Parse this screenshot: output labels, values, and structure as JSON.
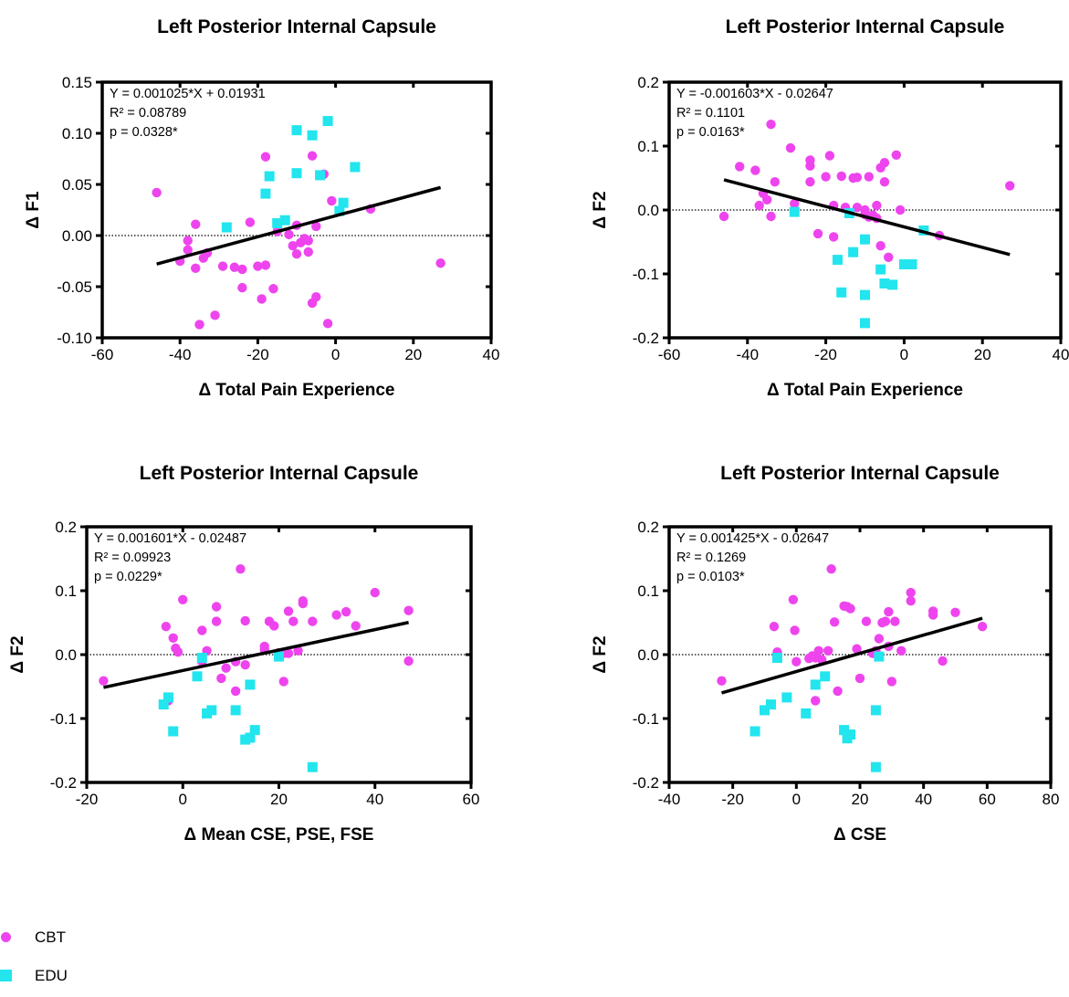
{
  "colors": {
    "CBT": "#ee44ee",
    "EDU": "#22e5ee"
  },
  "legend": [
    {
      "name": "CBT",
      "marker": "circle",
      "color": "#ee44ee"
    },
    {
      "name": "EDU",
      "marker": "square",
      "color": "#22e5ee"
    }
  ],
  "chart_data": [
    {
      "type": "scatter",
      "title": "Left Posterior Internal Capsule",
      "xlabel": "Δ Total Pain Experience",
      "ylabel": "Δ F1",
      "xlim": [
        -60,
        40
      ],
      "ylim": [
        -0.1,
        0.15
      ],
      "xticks": [
        "-60",
        "-40",
        "-20",
        "0",
        "20",
        "40"
      ],
      "yticks": [
        "-0.10",
        "-0.05",
        "0.00",
        "0.05",
        "0.10",
        "0.15"
      ],
      "annotation": [
        "Y = 0.001025*X + 0.01931",
        "R² = 0.08789",
        "p = 0.0328*"
      ],
      "fit": {
        "slope": 0.001025,
        "intercept": 0.01931,
        "x_range": [
          -46,
          27
        ]
      },
      "grid": false,
      "zero_line": true,
      "series": [
        {
          "name": "CBT",
          "points": [
            [
              -46,
              0.042
            ],
            [
              -40,
              -0.025
            ],
            [
              -38,
              -0.005
            ],
            [
              -38,
              -0.014
            ],
            [
              -36,
              0.011
            ],
            [
              -36,
              -0.032
            ],
            [
              -35,
              -0.087
            ],
            [
              -34,
              -0.022
            ],
            [
              -33,
              -0.017
            ],
            [
              -31,
              -0.078
            ],
            [
              -29,
              -0.03
            ],
            [
              -26,
              -0.031
            ],
            [
              -24,
              -0.033
            ],
            [
              -24,
              -0.051
            ],
            [
              -22,
              0.013
            ],
            [
              -20,
              -0.03
            ],
            [
              -19,
              -0.062
            ],
            [
              -18,
              0.077
            ],
            [
              -18,
              -0.029
            ],
            [
              -16,
              -0.052
            ],
            [
              -15,
              0.004
            ],
            [
              -12,
              0.001
            ],
            [
              -11,
              -0.01
            ],
            [
              -10,
              -0.018
            ],
            [
              -10,
              0.01
            ],
            [
              -9,
              -0.007
            ],
            [
              -8,
              -0.003
            ],
            [
              -7,
              -0.005
            ],
            [
              -7,
              -0.016
            ],
            [
              -6,
              0.078
            ],
            [
              -6,
              -0.066
            ],
            [
              -5,
              0.009
            ],
            [
              -5,
              -0.06
            ],
            [
              -3,
              0.06
            ],
            [
              -2,
              -0.086
            ],
            [
              -1,
              0.034
            ],
            [
              9,
              0.026
            ],
            [
              27,
              -0.027
            ]
          ]
        },
        {
          "name": "EDU",
          "points": [
            [
              -28,
              0.008
            ],
            [
              -18,
              0.041
            ],
            [
              -17,
              0.058
            ],
            [
              -15,
              0.012
            ],
            [
              -13,
              0.015
            ],
            [
              -10,
              0.103
            ],
            [
              -10,
              0.061
            ],
            [
              -6,
              0.098
            ],
            [
              -4,
              0.059
            ],
            [
              -2,
              0.112
            ],
            [
              1,
              0.024
            ],
            [
              2,
              0.032
            ],
            [
              5,
              0.067
            ]
          ]
        }
      ]
    },
    {
      "type": "scatter",
      "title": "Left Posterior Internal Capsule",
      "xlabel": "Δ Total Pain Experience",
      "ylabel": "Δ F2",
      "xlim": [
        -60,
        40
      ],
      "ylim": [
        -0.2,
        0.2
      ],
      "xticks": [
        "-60",
        "-40",
        "-20",
        "0",
        "20",
        "40"
      ],
      "yticks": [
        "-0.2",
        "-0.1",
        "0.0",
        "0.1",
        "0.2"
      ],
      "annotation": [
        "Y = -0.001603*X - 0.02647",
        "R² = 0.1101",
        "p = 0.0163*"
      ],
      "fit": {
        "slope": -0.001603,
        "intercept": -0.02647,
        "x_range": [
          -46,
          27
        ]
      },
      "grid": false,
      "zero_line": true,
      "series": [
        {
          "name": "CBT",
          "points": [
            [
              -46,
              -0.01
            ],
            [
              -42,
              0.068
            ],
            [
              -38,
              0.062
            ],
            [
              -37,
              0.007
            ],
            [
              -36,
              0.026
            ],
            [
              -35,
              0.016
            ],
            [
              -34,
              0.134
            ],
            [
              -34,
              -0.01
            ],
            [
              -33,
              0.044
            ],
            [
              -29,
              0.097
            ],
            [
              -28,
              0.01
            ],
            [
              -24,
              0.078
            ],
            [
              -24,
              0.069
            ],
            [
              -24,
              0.044
            ],
            [
              -22,
              -0.037
            ],
            [
              -20,
              0.052
            ],
            [
              -19,
              0.085
            ],
            [
              -18,
              0.007
            ],
            [
              -18,
              -0.042
            ],
            [
              -16,
              0.053
            ],
            [
              -15,
              0.004
            ],
            [
              -13,
              0.05
            ],
            [
              -12,
              0.051
            ],
            [
              -12,
              0.004
            ],
            [
              -10,
              0.0
            ],
            [
              -10,
              -0.007
            ],
            [
              -9,
              0.052
            ],
            [
              -9,
              -0.011
            ],
            [
              -8,
              -0.008
            ],
            [
              -7,
              0.007
            ],
            [
              -7,
              -0.013
            ],
            [
              -6,
              0.066
            ],
            [
              -6,
              -0.056
            ],
            [
              -5,
              0.074
            ],
            [
              -5,
              0.044
            ],
            [
              -4,
              -0.074
            ],
            [
              -2,
              0.086
            ],
            [
              -1,
              0.0
            ],
            [
              9,
              -0.04
            ],
            [
              27,
              0.038
            ]
          ]
        },
        {
          "name": "EDU",
          "points": [
            [
              -28,
              -0.003
            ],
            [
              -17,
              -0.078
            ],
            [
              -16,
              -0.129
            ],
            [
              -14,
              -0.005
            ],
            [
              -13,
              -0.066
            ],
            [
              -10,
              -0.133
            ],
            [
              -10,
              -0.177
            ],
            [
              -10,
              -0.046
            ],
            [
              -6,
              -0.093
            ],
            [
              -5,
              -0.115
            ],
            [
              -3,
              -0.117
            ],
            [
              0,
              -0.085
            ],
            [
              2,
              -0.085
            ],
            [
              5,
              -0.032
            ]
          ]
        }
      ]
    },
    {
      "type": "scatter",
      "title": "Left Posterior Internal Capsule",
      "xlabel": "Δ Mean CSE, PSE, FSE",
      "ylabel": "Δ F2",
      "xlim": [
        -20,
        60
      ],
      "ylim": [
        -0.2,
        0.2
      ],
      "xticks": [
        "-20",
        "0",
        "20",
        "40",
        "60"
      ],
      "yticks": [
        "-0.2",
        "-0.1",
        "0.0",
        "0.1",
        "0.2"
      ],
      "annotation": [
        "Y = 0.001601*X - 0.02487",
        "R² = 0.09923",
        "p = 0.0229*"
      ],
      "fit": {
        "slope": 0.001601,
        "intercept": -0.02487,
        "x_range": [
          -16.5,
          47
        ]
      },
      "grid": false,
      "zero_line": true,
      "series": [
        {
          "name": "CBT",
          "points": [
            [
              -16.5,
              -0.041
            ],
            [
              -3.5,
              0.044
            ],
            [
              -3,
              -0.072
            ],
            [
              -2,
              0.026
            ],
            [
              -1.5,
              0.01
            ],
            [
              -1,
              0.004
            ],
            [
              0,
              0.086
            ],
            [
              4,
              0.038
            ],
            [
              4,
              -0.011
            ],
            [
              5,
              0.006
            ],
            [
              7,
              0.075
            ],
            [
              7,
              0.052
            ],
            [
              8,
              -0.037
            ],
            [
              9,
              -0.021
            ],
            [
              11,
              -0.011
            ],
            [
              11,
              -0.057
            ],
            [
              12,
              0.134
            ],
            [
              13,
              0.053
            ],
            [
              13,
              -0.016
            ],
            [
              17,
              0.013
            ],
            [
              17,
              0.008
            ],
            [
              18,
              0.052
            ],
            [
              19,
              0.045
            ],
            [
              20,
              0.003
            ],
            [
              21,
              0.002
            ],
            [
              21,
              -0.042
            ],
            [
              22,
              0.002
            ],
            [
              22,
              0.068
            ],
            [
              23,
              0.052
            ],
            [
              24,
              0.006
            ],
            [
              25,
              0.084
            ],
            [
              25,
              0.08
            ],
            [
              27,
              0.052
            ],
            [
              32,
              0.062
            ],
            [
              34,
              0.067
            ],
            [
              36,
              0.045
            ],
            [
              40,
              0.097
            ],
            [
              47,
              0.069
            ],
            [
              47,
              -0.01
            ]
          ]
        },
        {
          "name": "EDU",
          "points": [
            [
              -4,
              -0.078
            ],
            [
              -3,
              -0.067
            ],
            [
              -2,
              -0.12
            ],
            [
              3,
              -0.034
            ],
            [
              4,
              -0.005
            ],
            [
              5,
              -0.092
            ],
            [
              6,
              -0.087
            ],
            [
              11,
              -0.087
            ],
            [
              13,
              -0.133
            ],
            [
              14,
              -0.13
            ],
            [
              14,
              -0.047
            ],
            [
              15,
              -0.118
            ],
            [
              20,
              -0.003
            ],
            [
              27,
              -0.176
            ]
          ]
        }
      ]
    },
    {
      "type": "scatter",
      "title": "Left Posterior Internal Capsule",
      "xlabel": "Δ CSE",
      "ylabel": "Δ F2",
      "xlim": [
        -40,
        80
      ],
      "ylim": [
        -0.2,
        0.2
      ],
      "xticks": [
        "-40",
        "-20",
        "0",
        "20",
        "40",
        "60",
        "80"
      ],
      "yticks": [
        "-0.2",
        "-0.1",
        "0.0",
        "0.1",
        "0.2"
      ],
      "annotation": [
        "Y = 0.001425*X - 0.02647",
        "R² = 0.1269",
        "p = 0.0103*"
      ],
      "fit": {
        "slope": 0.001425,
        "intercept": -0.02647,
        "x_range": [
          -23.5,
          58.5
        ]
      },
      "grid": false,
      "zero_line": true,
      "series": [
        {
          "name": "CBT",
          "points": [
            [
              -23.5,
              -0.041
            ],
            [
              -7,
              0.044
            ],
            [
              -6,
              0.004
            ],
            [
              -1,
              0.086
            ],
            [
              -0.5,
              0.038
            ],
            [
              0,
              -0.011
            ],
            [
              4,
              -0.006
            ],
            [
              5,
              -0.002
            ],
            [
              6,
              -0.072
            ],
            [
              6,
              -0.005
            ],
            [
              7,
              0.006
            ],
            [
              8,
              -0.008
            ],
            [
              10,
              0.006
            ],
            [
              11,
              0.134
            ],
            [
              12,
              0.051
            ],
            [
              13,
              -0.057
            ],
            [
              15,
              0.076
            ],
            [
              16,
              0.075
            ],
            [
              17,
              0.072
            ],
            [
              19,
              0.009
            ],
            [
              20,
              -0.037
            ],
            [
              22,
              0.052
            ],
            [
              24,
              0.002
            ],
            [
              25,
              0.006
            ],
            [
              26,
              0.025
            ],
            [
              27,
              0.05
            ],
            [
              28,
              0.052
            ],
            [
              29,
              0.067
            ],
            [
              29,
              0.013
            ],
            [
              30,
              -0.042
            ],
            [
              31,
              0.052
            ],
            [
              33,
              0.006
            ],
            [
              36,
              0.097
            ],
            [
              36,
              0.084
            ],
            [
              43,
              0.068
            ],
            [
              43,
              0.062
            ],
            [
              46,
              -0.01
            ],
            [
              50,
              0.066
            ],
            [
              58.5,
              0.044
            ]
          ]
        },
        {
          "name": "EDU",
          "points": [
            [
              -13,
              -0.12
            ],
            [
              -10,
              -0.087
            ],
            [
              -8,
              -0.078
            ],
            [
              -6,
              -0.005
            ],
            [
              -3,
              -0.067
            ],
            [
              3,
              -0.092
            ],
            [
              6,
              -0.047
            ],
            [
              9,
              -0.034
            ],
            [
              15,
              -0.118
            ],
            [
              16,
              -0.131
            ],
            [
              17,
              -0.125
            ],
            [
              25,
              -0.087
            ],
            [
              25,
              -0.176
            ],
            [
              26,
              -0.003
            ]
          ]
        }
      ]
    }
  ]
}
